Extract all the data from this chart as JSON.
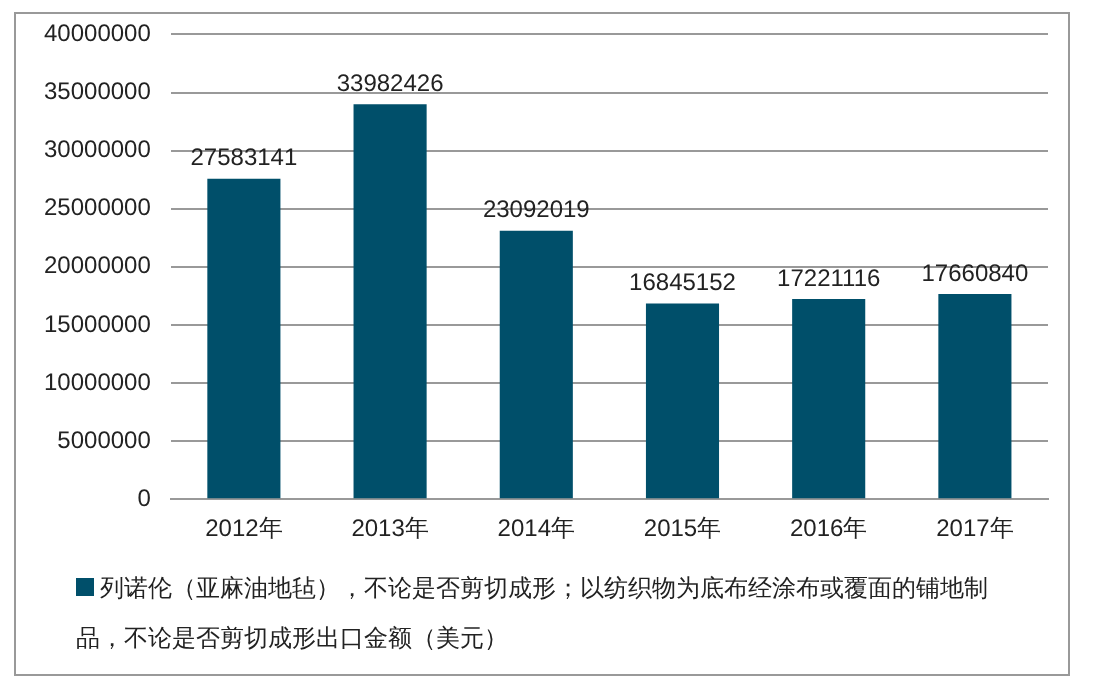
{
  "chart_data": {
    "type": "bar",
    "categories": [
      "2012年",
      "2013年",
      "2014年",
      "2015年",
      "2016年",
      "2017年"
    ],
    "series": [
      {
        "name": "列诺伦（亚麻油地毡），不论是否剪切成形；以纺织物为底布经涂布或覆面的铺地制品，不论是否剪切成形出口金额（美元）",
        "color": "#004f6a",
        "values": [
          27583141,
          33982426,
          23092019,
          16845152,
          17221116,
          17660840
        ]
      }
    ],
    "ylim": [
      0,
      40000000
    ],
    "yticks": [
      0,
      5000000,
      10000000,
      15000000,
      20000000,
      25000000,
      30000000,
      35000000,
      40000000
    ],
    "grid": "y",
    "legend": "bottom",
    "data_labels": true
  }
}
